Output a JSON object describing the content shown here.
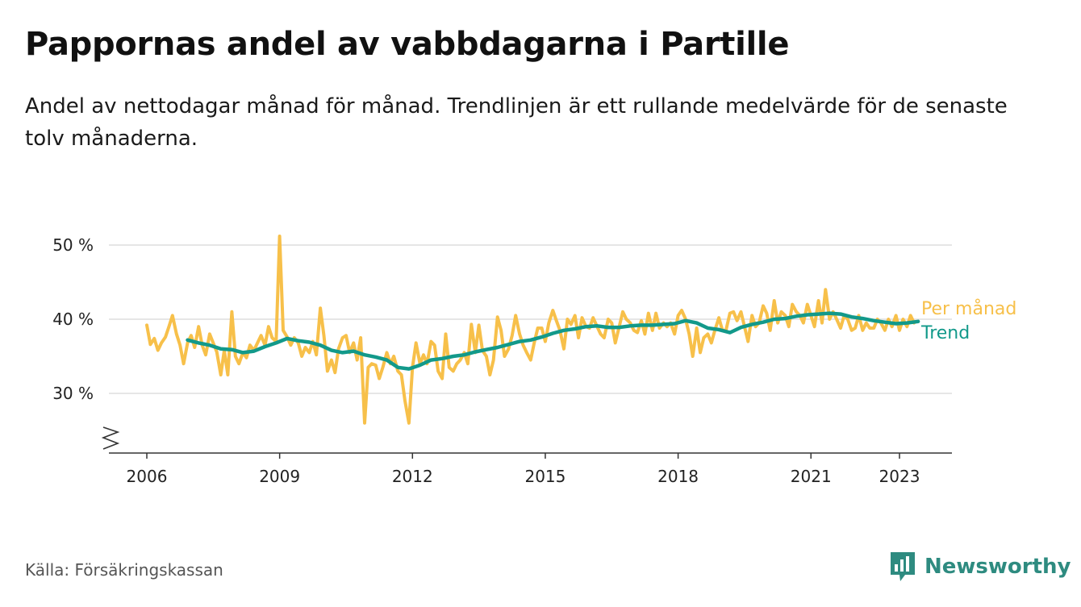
{
  "header": {
    "title": "Pappornas andel av vabbdagarna i Partille",
    "subtitle": "Andel av nettodagar månad för månad. Trendlinjen är ett rullande medelvärde för de senaste tolv månaderna."
  },
  "footer": {
    "source": "Källa: Försäkringskassan",
    "brand": "Newsworthy"
  },
  "colors": {
    "monthly": "#f7c04a",
    "trend": "#12998a",
    "grid": "#dddddd",
    "axis": "#333333",
    "brand": "#2e8b80"
  },
  "icons": {
    "brand_logo": "bar-chart-speech-bubble-icon",
    "axis_break": "zigzag-axis-break-icon"
  },
  "chart_data": {
    "type": "line",
    "x_unit": "year",
    "xlim": [
      2005.5,
      2024.0
    ],
    "ylim": [
      22,
      52
    ],
    "y_ticks": [
      {
        "value": 30,
        "label": "30 %"
      },
      {
        "value": 40,
        "label": "40 %"
      },
      {
        "value": 50,
        "label": "50 %"
      }
    ],
    "x_ticks": [
      {
        "value": 2006,
        "label": "2006"
      },
      {
        "value": 2009,
        "label": "2009"
      },
      {
        "value": 2012,
        "label": "2012"
      },
      {
        "value": 2015,
        "label": "2015"
      },
      {
        "value": 2018,
        "label": "2018"
      },
      {
        "value": 2021,
        "label": "2021"
      },
      {
        "value": 2023,
        "label": "2023"
      }
    ],
    "grid": true,
    "axis_break": true,
    "legend_placement": "right-of-line-ends",
    "series": [
      {
        "name": "Per månad",
        "color": "#f7c04a",
        "points": [
          [
            2006.0,
            39.2
          ],
          [
            2006.08,
            36.6
          ],
          [
            2006.17,
            37.4
          ],
          [
            2006.25,
            35.8
          ],
          [
            2006.33,
            36.8
          ],
          [
            2006.42,
            37.6
          ],
          [
            2006.5,
            39.0
          ],
          [
            2006.58,
            40.5
          ],
          [
            2006.67,
            38.0
          ],
          [
            2006.75,
            36.5
          ],
          [
            2006.83,
            34.0
          ],
          [
            2006.92,
            36.8
          ],
          [
            2007.0,
            37.8
          ],
          [
            2007.08,
            36.2
          ],
          [
            2007.17,
            39.0
          ],
          [
            2007.25,
            36.5
          ],
          [
            2007.33,
            35.2
          ],
          [
            2007.42,
            38.0
          ],
          [
            2007.5,
            36.8
          ],
          [
            2007.58,
            35.6
          ],
          [
            2007.67,
            32.5
          ],
          [
            2007.75,
            35.8
          ],
          [
            2007.83,
            32.5
          ],
          [
            2007.92,
            41.0
          ],
          [
            2008.0,
            35.0
          ],
          [
            2008.08,
            34.0
          ],
          [
            2008.17,
            35.5
          ],
          [
            2008.25,
            34.8
          ],
          [
            2008.33,
            36.5
          ],
          [
            2008.42,
            35.8
          ],
          [
            2008.5,
            36.8
          ],
          [
            2008.58,
            37.8
          ],
          [
            2008.67,
            36.5
          ],
          [
            2008.75,
            39.0
          ],
          [
            2008.83,
            37.5
          ],
          [
            2008.92,
            37.0
          ],
          [
            2009.0,
            51.2
          ],
          [
            2009.08,
            38.5
          ],
          [
            2009.17,
            37.6
          ],
          [
            2009.25,
            36.5
          ],
          [
            2009.33,
            37.5
          ],
          [
            2009.42,
            36.8
          ],
          [
            2009.5,
            35.0
          ],
          [
            2009.58,
            36.2
          ],
          [
            2009.67,
            35.5
          ],
          [
            2009.75,
            37.0
          ],
          [
            2009.83,
            35.2
          ],
          [
            2009.92,
            41.5
          ],
          [
            2010.0,
            37.8
          ],
          [
            2010.08,
            33.0
          ],
          [
            2010.17,
            34.5
          ],
          [
            2010.25,
            32.8
          ],
          [
            2010.33,
            36.0
          ],
          [
            2010.42,
            37.5
          ],
          [
            2010.5,
            37.8
          ],
          [
            2010.58,
            35.5
          ],
          [
            2010.67,
            36.8
          ],
          [
            2010.75,
            34.5
          ],
          [
            2010.83,
            37.5
          ],
          [
            2010.92,
            26.0
          ],
          [
            2011.0,
            33.5
          ],
          [
            2011.08,
            34.0
          ],
          [
            2011.17,
            33.8
          ],
          [
            2011.25,
            32.0
          ],
          [
            2011.33,
            33.5
          ],
          [
            2011.42,
            35.5
          ],
          [
            2011.5,
            34.0
          ],
          [
            2011.58,
            35.0
          ],
          [
            2011.67,
            33.0
          ],
          [
            2011.75,
            32.5
          ],
          [
            2011.83,
            29.0
          ],
          [
            2011.92,
            26.0
          ],
          [
            2012.0,
            33.5
          ],
          [
            2012.08,
            36.8
          ],
          [
            2012.17,
            34.0
          ],
          [
            2012.25,
            35.2
          ],
          [
            2012.33,
            34.0
          ],
          [
            2012.42,
            37.0
          ],
          [
            2012.5,
            36.5
          ],
          [
            2012.58,
            33.0
          ],
          [
            2012.67,
            32.0
          ],
          [
            2012.75,
            38.0
          ],
          [
            2012.83,
            33.5
          ],
          [
            2012.92,
            33.0
          ],
          [
            2013.0,
            34.0
          ],
          [
            2013.08,
            34.5
          ],
          [
            2013.17,
            35.5
          ],
          [
            2013.25,
            34.0
          ],
          [
            2013.33,
            39.3
          ],
          [
            2013.42,
            35.5
          ],
          [
            2013.5,
            39.2
          ],
          [
            2013.58,
            35.8
          ],
          [
            2013.67,
            35.0
          ],
          [
            2013.75,
            32.5
          ],
          [
            2013.83,
            34.5
          ],
          [
            2013.92,
            40.3
          ],
          [
            2014.0,
            38.5
          ],
          [
            2014.08,
            35.0
          ],
          [
            2014.17,
            36.0
          ],
          [
            2014.25,
            37.8
          ],
          [
            2014.33,
            40.5
          ],
          [
            2014.42,
            38.0
          ],
          [
            2014.5,
            36.5
          ],
          [
            2014.58,
            35.5
          ],
          [
            2014.67,
            34.5
          ],
          [
            2014.75,
            36.8
          ],
          [
            2014.83,
            38.8
          ],
          [
            2014.92,
            38.8
          ],
          [
            2015.0,
            37.0
          ],
          [
            2015.08,
            39.5
          ],
          [
            2015.17,
            41.2
          ],
          [
            2015.25,
            39.8
          ],
          [
            2015.33,
            38.5
          ],
          [
            2015.42,
            36.0
          ],
          [
            2015.5,
            40.0
          ],
          [
            2015.58,
            39.3
          ],
          [
            2015.67,
            40.5
          ],
          [
            2015.75,
            37.5
          ],
          [
            2015.83,
            40.2
          ],
          [
            2015.92,
            39.0
          ],
          [
            2016.0,
            38.8
          ],
          [
            2016.08,
            40.2
          ],
          [
            2016.17,
            39.0
          ],
          [
            2016.25,
            38.0
          ],
          [
            2016.33,
            37.5
          ],
          [
            2016.42,
            40.0
          ],
          [
            2016.5,
            39.5
          ],
          [
            2016.58,
            36.8
          ],
          [
            2016.67,
            39.0
          ],
          [
            2016.75,
            41.0
          ],
          [
            2016.83,
            40.0
          ],
          [
            2016.92,
            39.5
          ],
          [
            2017.0,
            38.5
          ],
          [
            2017.08,
            38.2
          ],
          [
            2017.17,
            39.8
          ],
          [
            2017.25,
            38.0
          ],
          [
            2017.33,
            40.8
          ],
          [
            2017.42,
            38.5
          ],
          [
            2017.5,
            40.8
          ],
          [
            2017.58,
            38.8
          ],
          [
            2017.67,
            39.5
          ],
          [
            2017.75,
            39.0
          ],
          [
            2017.83,
            39.5
          ],
          [
            2017.92,
            38.0
          ],
          [
            2018.0,
            40.5
          ],
          [
            2018.08,
            41.2
          ],
          [
            2018.17,
            40.0
          ],
          [
            2018.25,
            38.0
          ],
          [
            2018.33,
            35.0
          ],
          [
            2018.42,
            38.8
          ],
          [
            2018.5,
            35.5
          ],
          [
            2018.58,
            37.5
          ],
          [
            2018.67,
            38.0
          ],
          [
            2018.75,
            36.8
          ],
          [
            2018.83,
            38.5
          ],
          [
            2018.92,
            40.2
          ],
          [
            2019.0,
            38.5
          ],
          [
            2019.08,
            38.5
          ],
          [
            2019.17,
            40.8
          ],
          [
            2019.25,
            41.0
          ],
          [
            2019.33,
            39.8
          ],
          [
            2019.42,
            41.0
          ],
          [
            2019.5,
            39.0
          ],
          [
            2019.58,
            37.0
          ],
          [
            2019.67,
            40.5
          ],
          [
            2019.75,
            39.0
          ],
          [
            2019.83,
            39.5
          ],
          [
            2019.92,
            41.8
          ],
          [
            2020.0,
            40.8
          ],
          [
            2020.08,
            38.5
          ],
          [
            2020.17,
            42.5
          ],
          [
            2020.25,
            39.5
          ],
          [
            2020.33,
            41.0
          ],
          [
            2020.42,
            40.5
          ],
          [
            2020.5,
            39.0
          ],
          [
            2020.58,
            42.0
          ],
          [
            2020.67,
            41.0
          ],
          [
            2020.75,
            40.5
          ],
          [
            2020.83,
            39.5
          ],
          [
            2020.92,
            42.0
          ],
          [
            2021.0,
            40.5
          ],
          [
            2021.08,
            39.0
          ],
          [
            2021.17,
            42.5
          ],
          [
            2021.25,
            39.5
          ],
          [
            2021.33,
            44.0
          ],
          [
            2021.42,
            40.0
          ],
          [
            2021.5,
            41.0
          ],
          [
            2021.58,
            40.0
          ],
          [
            2021.67,
            38.8
          ],
          [
            2021.75,
            40.5
          ],
          [
            2021.83,
            40.0
          ],
          [
            2021.92,
            38.5
          ],
          [
            2022.0,
            38.8
          ],
          [
            2022.08,
            40.5
          ],
          [
            2022.17,
            38.5
          ],
          [
            2022.25,
            39.5
          ],
          [
            2022.33,
            38.8
          ],
          [
            2022.42,
            38.8
          ],
          [
            2022.5,
            40.0
          ],
          [
            2022.58,
            39.5
          ],
          [
            2022.67,
            38.5
          ],
          [
            2022.75,
            40.0
          ],
          [
            2022.83,
            39.0
          ],
          [
            2022.92,
            40.5
          ],
          [
            2023.0,
            38.5
          ],
          [
            2023.08,
            40.0
          ],
          [
            2023.17,
            39.0
          ],
          [
            2023.25,
            40.5
          ],
          [
            2023.33,
            39.5
          ]
        ]
      },
      {
        "name": "Trend",
        "color": "#12998a",
        "points": [
          [
            2006.92,
            37.2
          ],
          [
            2007.17,
            36.8
          ],
          [
            2007.42,
            36.5
          ],
          [
            2007.67,
            36.0
          ],
          [
            2007.92,
            35.9
          ],
          [
            2008.17,
            35.5
          ],
          [
            2008.42,
            35.7
          ],
          [
            2008.67,
            36.3
          ],
          [
            2008.92,
            36.8
          ],
          [
            2009.17,
            37.4
          ],
          [
            2009.42,
            37.1
          ],
          [
            2009.67,
            36.9
          ],
          [
            2009.92,
            36.5
          ],
          [
            2010.17,
            35.8
          ],
          [
            2010.42,
            35.5
          ],
          [
            2010.67,
            35.7
          ],
          [
            2010.92,
            35.2
          ],
          [
            2011.17,
            34.9
          ],
          [
            2011.42,
            34.5
          ],
          [
            2011.67,
            33.5
          ],
          [
            2011.92,
            33.3
          ],
          [
            2012.17,
            33.8
          ],
          [
            2012.42,
            34.5
          ],
          [
            2012.67,
            34.7
          ],
          [
            2012.92,
            35.0
          ],
          [
            2013.17,
            35.2
          ],
          [
            2013.42,
            35.6
          ],
          [
            2013.67,
            35.9
          ],
          [
            2013.92,
            36.2
          ],
          [
            2014.17,
            36.6
          ],
          [
            2014.42,
            37.0
          ],
          [
            2014.67,
            37.2
          ],
          [
            2014.92,
            37.6
          ],
          [
            2015.17,
            38.1
          ],
          [
            2015.42,
            38.5
          ],
          [
            2015.67,
            38.7
          ],
          [
            2015.92,
            39.0
          ],
          [
            2016.17,
            39.1
          ],
          [
            2016.42,
            38.9
          ],
          [
            2016.67,
            38.9
          ],
          [
            2016.92,
            39.1
          ],
          [
            2017.17,
            39.2
          ],
          [
            2017.42,
            39.2
          ],
          [
            2017.67,
            39.3
          ],
          [
            2017.92,
            39.4
          ],
          [
            2018.17,
            39.8
          ],
          [
            2018.42,
            39.5
          ],
          [
            2018.67,
            38.8
          ],
          [
            2018.92,
            38.6
          ],
          [
            2019.17,
            38.2
          ],
          [
            2019.42,
            38.9
          ],
          [
            2019.67,
            39.3
          ],
          [
            2019.92,
            39.6
          ],
          [
            2020.17,
            40.0
          ],
          [
            2020.42,
            40.1
          ],
          [
            2020.67,
            40.4
          ],
          [
            2020.92,
            40.6
          ],
          [
            2021.17,
            40.7
          ],
          [
            2021.42,
            40.8
          ],
          [
            2021.67,
            40.7
          ],
          [
            2021.92,
            40.3
          ],
          [
            2022.17,
            40.1
          ],
          [
            2022.42,
            39.8
          ],
          [
            2022.67,
            39.6
          ],
          [
            2022.92,
            39.4
          ],
          [
            2023.17,
            39.5
          ],
          [
            2023.42,
            39.7
          ]
        ]
      }
    ]
  }
}
